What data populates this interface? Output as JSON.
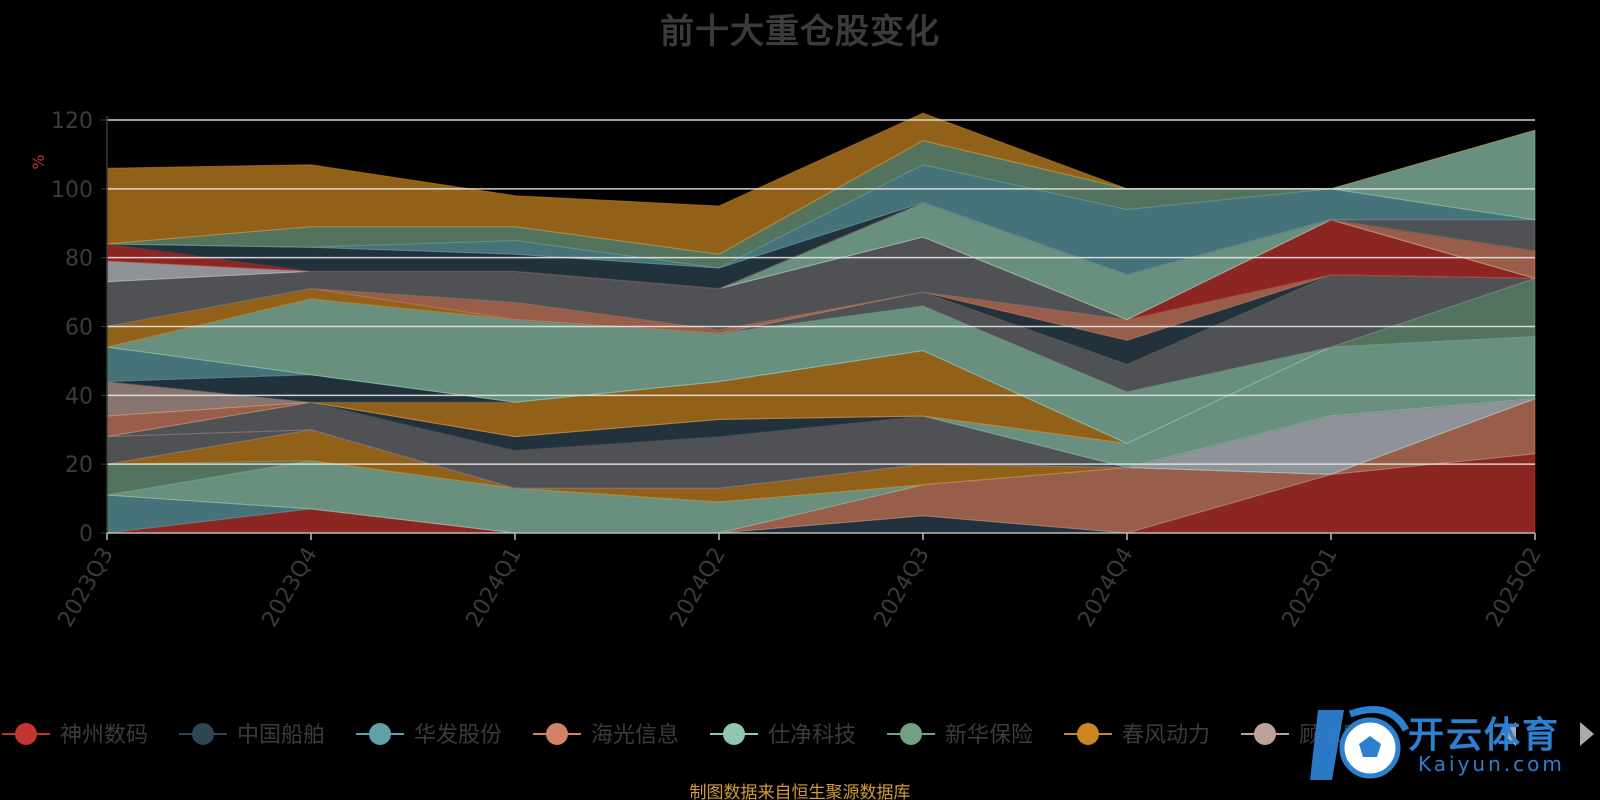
{
  "chart_data": {
    "type": "area",
    "stacked": true,
    "title": "前十大重仓股变化",
    "ylabel": "%",
    "ylim": [
      0,
      120
    ],
    "yticks": [
      0,
      20,
      40,
      60,
      80,
      100,
      120
    ],
    "grid": true,
    "legend_position": "bottom",
    "categories": [
      "2023Q3",
      "2023Q4",
      "2024Q1",
      "2024Q2",
      "2024Q3",
      "2024Q4",
      "2025Q1",
      "2025Q2"
    ],
    "series": [
      {
        "name": "神州数码",
        "color": "#c23531",
        "values": [
          0,
          7,
          0,
          0,
          0,
          0,
          17,
          23
        ]
      },
      {
        "name": "中国船舶",
        "color": "#2f4554",
        "values": [
          0,
          0,
          0,
          0,
          5,
          0,
          0,
          0
        ]
      },
      {
        "name": "华发股份",
        "color": "#61a0a8",
        "values": [
          11,
          0,
          0,
          0,
          0,
          0,
          0,
          0
        ]
      },
      {
        "name": "海光信息",
        "color": "#d48265",
        "values": [
          0,
          0,
          0,
          0,
          9,
          19,
          0,
          16
        ]
      },
      {
        "name": "仕净科技",
        "color": "#91c7ae",
        "values": [
          0,
          14,
          13,
          9,
          0,
          0,
          0,
          0
        ]
      },
      {
        "name": "新华保险",
        "color": "#749f83",
        "values": [
          9,
          0,
          0,
          0,
          0,
          0,
          0,
          0
        ]
      },
      {
        "name": "春风动力",
        "color": "#ca8622",
        "values": [
          0,
          9,
          0,
          4,
          6,
          0,
          0,
          0
        ]
      },
      {
        "name": "顾家家居",
        "color": "#bda29a",
        "values": [
          0,
          0,
          0,
          0,
          0,
          0,
          0,
          0
        ]
      },
      {
        "name": "",
        "color": "#6e7074",
        "values": [
          8,
          0,
          0,
          0,
          0,
          0,
          0,
          0
        ]
      },
      {
        "name": "",
        "color": "#546570",
        "values": [
          0,
          0,
          0,
          0,
          0,
          0,
          0,
          0
        ]
      },
      {
        "name": "",
        "color": "#c4ccd3",
        "values": [
          0,
          0,
          0,
          0,
          0,
          0,
          17,
          0
        ]
      },
      {
        "name": "",
        "color": "#c23531",
        "values": [
          0,
          0,
          0,
          0,
          0,
          0,
          0,
          0
        ]
      },
      {
        "name": "",
        "color": "#6e7074",
        "values": [
          0,
          8,
          11,
          15,
          14,
          0,
          0,
          0
        ]
      },
      {
        "name": "",
        "color": "#2f4554",
        "values": [
          0,
          0,
          4,
          5,
          0,
          0,
          0,
          0
        ]
      },
      {
        "name": "",
        "color": "#91c7ae",
        "values": [
          0,
          0,
          0,
          0,
          0,
          7,
          20,
          18
        ]
      },
      {
        "name": "",
        "color": "#d48265",
        "values": [
          6,
          0,
          0,
          0,
          0,
          0,
          0,
          0
        ]
      },
      {
        "name": "",
        "color": "#ca8622",
        "values": [
          0,
          0,
          10,
          11,
          19,
          0,
          0,
          0
        ]
      },
      {
        "name": "",
        "color": "#bda29a",
        "values": [
          10,
          0,
          0,
          0,
          0,
          0,
          0,
          0
        ]
      },
      {
        "name": "",
        "color": "#2f4554",
        "values": [
          0,
          8,
          0,
          0,
          0,
          0,
          0,
          0
        ]
      },
      {
        "name": "",
        "color": "#61a0a8",
        "values": [
          10,
          0,
          0,
          0,
          0,
          0,
          0,
          0
        ]
      },
      {
        "name": "",
        "color": "#749f83",
        "values": [
          0,
          0,
          0,
          0,
          0,
          0,
          0,
          17
        ]
      },
      {
        "name": "",
        "color": "#91c7ae",
        "values": [
          0,
          22,
          24,
          14,
          13,
          15,
          0,
          0
        ]
      },
      {
        "name": "",
        "color": "#6e7074",
        "values": [
          0,
          0,
          0,
          0,
          4,
          8,
          21,
          0
        ]
      },
      {
        "name": "",
        "color": "#ca8622",
        "values": [
          6,
          3,
          0,
          0,
          0,
          0,
          0,
          0
        ]
      },
      {
        "name": "",
        "color": "#2f4554",
        "values": [
          0,
          0,
          0,
          0,
          0,
          7,
          0,
          0
        ]
      },
      {
        "name": "",
        "color": "#d48265",
        "values": [
          0,
          0,
          5,
          1,
          0,
          6,
          0,
          0
        ]
      },
      {
        "name": "",
        "color": "#6e7074",
        "values": [
          13,
          5,
          9,
          12,
          16,
          0,
          0,
          0
        ]
      },
      {
        "name": "",
        "color": "#c23531",
        "values": [
          0,
          0,
          0,
          0,
          0,
          0,
          16,
          0
        ]
      },
      {
        "name": "",
        "color": "#c4ccd3",
        "values": [
          6,
          0,
          0,
          0,
          0,
          0,
          0,
          0
        ]
      },
      {
        "name": "",
        "color": "#91c7ae",
        "values": [
          0,
          0,
          0,
          0,
          10,
          13,
          0,
          0
        ]
      },
      {
        "name": "",
        "color": "#d48265",
        "values": [
          0,
          0,
          0,
          0,
          0,
          0,
          0,
          8
        ]
      },
      {
        "name": "",
        "color": "#c23531",
        "values": [
          5,
          0,
          0,
          0,
          0,
          0,
          0,
          0
        ]
      },
      {
        "name": "",
        "color": "#2f4554",
        "values": [
          0,
          7,
          5,
          6,
          0,
          0,
          0,
          0
        ]
      },
      {
        "name": "",
        "color": "#6e7074",
        "values": [
          0,
          0,
          0,
          0,
          0,
          0,
          0,
          9
        ]
      },
      {
        "name": "",
        "color": "#61a0a8",
        "values": [
          0,
          0,
          4,
          0,
          11,
          19,
          9,
          0
        ]
      },
      {
        "name": "",
        "color": "#749f83",
        "values": [
          0,
          6,
          4,
          4,
          7,
          6,
          0,
          0
        ]
      },
      {
        "name": "",
        "color": "#91c7ae",
        "values": [
          0,
          0,
          0,
          0,
          0,
          0,
          0,
          26
        ]
      },
      {
        "name": "",
        "color": "#ca8622",
        "values": [
          22,
          18,
          9,
          14,
          8,
          0,
          0,
          0
        ]
      }
    ]
  },
  "legend": {
    "items": [
      {
        "name": "神州数码",
        "color": "#c23531"
      },
      {
        "name": "中国船舶",
        "color": "#2f4554"
      },
      {
        "name": "华发股份",
        "color": "#61a0a8"
      },
      {
        "name": "海光信息",
        "color": "#d48265"
      },
      {
        "name": "仕净科技",
        "color": "#91c7ae"
      },
      {
        "name": "新华保险",
        "color": "#749f83"
      },
      {
        "name": "春风动力",
        "color": "#ca8622"
      },
      {
        "name": "顾家家居",
        "color": "#bda29a"
      }
    ]
  },
  "source_note": "制图数据来自恒生聚源数据库",
  "watermark": {
    "text": "开云体育",
    "subtext": "Kaiyun.com",
    "color": "#2d7fcf"
  },
  "pager_icons": [
    "chevron-left-icon",
    "chevron-right-icon"
  ]
}
